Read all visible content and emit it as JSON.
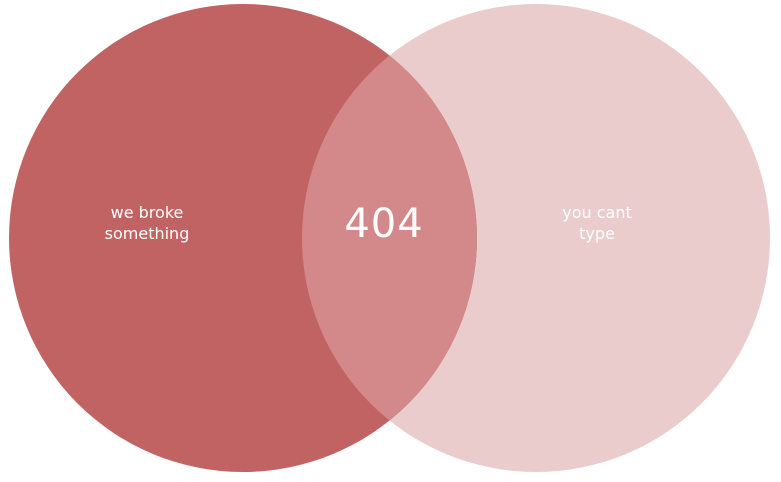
{
  "diagram": {
    "left_circle": {
      "line1": "we broke",
      "line2": "something",
      "color": "#c26363"
    },
    "right_circle": {
      "line1": "you cant",
      "line2": "type",
      "color": "#eacccc"
    },
    "overlap": {
      "text": "404",
      "color": "#d38989"
    },
    "background": "#ffffff",
    "text_color": "#ffffff"
  }
}
